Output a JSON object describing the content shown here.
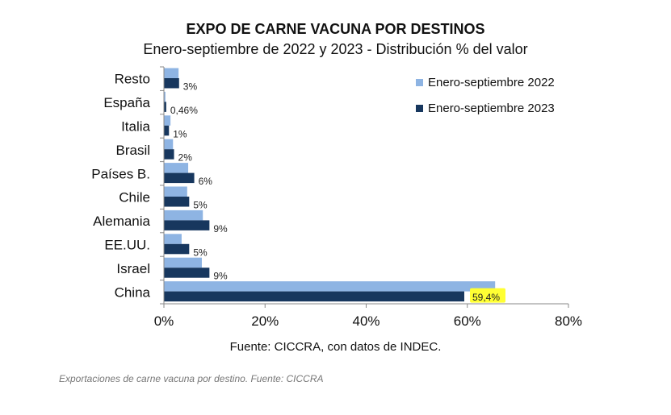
{
  "chart_data": {
    "type": "bar",
    "orientation": "horizontal",
    "title": "EXPO DE CARNE VACUNA POR DESTINOS",
    "subtitle": "Enero-septiembre de 2022 y 2023 - Distribución % del valor",
    "categories": [
      "Resto",
      "España",
      "Italia",
      "Brasil",
      "Países B.",
      "Chile",
      "Alemania",
      "EE.UU.",
      "Israel",
      "China"
    ],
    "series": [
      {
        "name": "Enero-septiembre 2022",
        "color": "#8EB4E3",
        "values": [
          2.9,
          0.3,
          1.3,
          1.8,
          4.8,
          4.6,
          7.7,
          3.5,
          7.5,
          65.5
        ]
      },
      {
        "name": "Enero-septiembre 2023",
        "color": "#17375E",
        "values": [
          3,
          0.46,
          1,
          2,
          6,
          5,
          9,
          5,
          9,
          59.4
        ],
        "labels": [
          "3%",
          "0,46%",
          "1%",
          "2%",
          "6%",
          "5%",
          "9%",
          "5%",
          "9%",
          "59,4%"
        ]
      }
    ],
    "xlim": [
      0,
      80
    ],
    "xticks": [
      "0%",
      "20%",
      "40%",
      "60%",
      "80%"
    ],
    "highlight_label_color": "#FFFF33",
    "legend_position": "top-right",
    "grid": false
  },
  "source": "Fuente: CICCRA, con datos de INDEC.",
  "caption": "Exportaciones de carne vacuna por destino. Fuente: CICCRA"
}
